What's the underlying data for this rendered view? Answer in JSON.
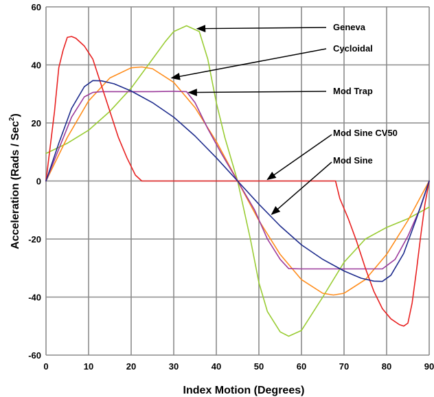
{
  "chart_data": {
    "type": "line",
    "xlabel": "Index Motion (Degrees)",
    "ylabel": "Acceleration (Rads / Sec",
    "ylabel_sup": "2",
    "ylabel_close": ")",
    "xlim": [
      0,
      90
    ],
    "ylim": [
      -60,
      60
    ],
    "xticks": [
      0,
      10,
      20,
      30,
      40,
      50,
      60,
      70,
      80,
      90
    ],
    "yticks": [
      -60,
      -40,
      -20,
      0,
      20,
      40,
      60
    ],
    "grid": true,
    "series": [
      {
        "name": "Geneva",
        "color": "#99cc33",
        "x": [
          0,
          5,
          10,
          15,
          20,
          25,
          28,
          30,
          33,
          36,
          38,
          40,
          42,
          45,
          48,
          50,
          52,
          55,
          57,
          60,
          65,
          70,
          75,
          80,
          85,
          90
        ],
        "y": [
          9.5,
          13,
          17.5,
          24,
          32,
          42,
          48,
          51.5,
          53.5,
          51.5,
          42,
          27,
          15,
          0,
          -20,
          -35,
          -45,
          -52,
          -53.5,
          -51.5,
          -40,
          -28,
          -20,
          -16,
          -13,
          -9
        ]
      },
      {
        "name": "Cycloidal",
        "color": "#ff8c1a",
        "x": [
          0,
          5,
          10,
          15,
          20,
          22.5,
          25,
          30,
          35,
          40,
          45,
          50,
          55,
          60,
          65,
          67.5,
          70,
          75,
          80,
          85,
          90
        ],
        "y": [
          0,
          15,
          27.6,
          35.5,
          39,
          39.3,
          38.7,
          34,
          25.3,
          13.6,
          0,
          -13.6,
          -25.3,
          -34,
          -38.7,
          -39.3,
          -38.7,
          -34,
          -25.3,
          -13.6,
          0
        ]
      },
      {
        "name": "Mod Trap",
        "color": "#9b3a9b",
        "x": [
          0,
          3,
          6,
          9,
          11,
          13,
          20,
          25,
          30,
          33,
          35,
          38,
          41,
          45,
          49,
          52,
          55,
          57,
          60,
          65,
          70,
          75,
          79,
          82,
          85,
          88,
          90
        ],
        "y": [
          0,
          11,
          22,
          29,
          30.5,
          30.8,
          30.8,
          30.8,
          30.9,
          30.8,
          27,
          18,
          10,
          0,
          -10,
          -20,
          -27,
          -30.2,
          -30.3,
          -30.3,
          -30.3,
          -30.3,
          -30.3,
          -27,
          -19,
          -9,
          0
        ]
      },
      {
        "name": "Mod Sine CV50",
        "color": "#e82020",
        "x": [
          0,
          2,
          3,
          4,
          5,
          6,
          7,
          9,
          11,
          13,
          15,
          17,
          19,
          21,
          22.5,
          68,
          69,
          71,
          73,
          75,
          77,
          79,
          81,
          83,
          84,
          85,
          86,
          87,
          88,
          89,
          90
        ],
        "y": [
          0,
          24,
          39,
          45,
          49.5,
          49.8,
          49.2,
          46.5,
          42,
          33,
          24,
          15,
          8,
          2,
          0,
          0,
          -6,
          -13,
          -21,
          -30,
          -38,
          -44,
          -47.5,
          -49.5,
          -50,
          -49,
          -42,
          -31,
          -19,
          -8,
          0
        ]
      },
      {
        "name": "Mod Sine",
        "color": "#1c2a8c",
        "x": [
          0,
          3,
          6,
          9,
          11,
          13,
          16,
          20,
          25,
          30,
          35,
          40,
          45,
          50,
          55,
          60,
          65,
          70,
          74,
          77,
          79,
          81,
          84,
          87,
          90
        ],
        "y": [
          0,
          13,
          25,
          32.5,
          34.6,
          34.5,
          33.5,
          31,
          27,
          22,
          15.5,
          8,
          0,
          -8,
          -15.5,
          -22,
          -27,
          -31,
          -33.5,
          -34.5,
          -34.6,
          -32.5,
          -25,
          -13,
          0
        ]
      }
    ],
    "annotations": [
      {
        "text": "Geneva",
        "target_x": 35.5,
        "target_y": 52.5
      },
      {
        "text": "Cycloidal",
        "target_x": 29.5,
        "target_y": 35.5
      },
      {
        "text": "Mod Trap",
        "target_x": 33.5,
        "target_y": 30.5
      },
      {
        "text": "Mod Sine CV50",
        "target_x": 52,
        "target_y": 0.5
      },
      {
        "text": "Mod Sine",
        "target_x": 53,
        "target_y": -11.5
      }
    ]
  }
}
